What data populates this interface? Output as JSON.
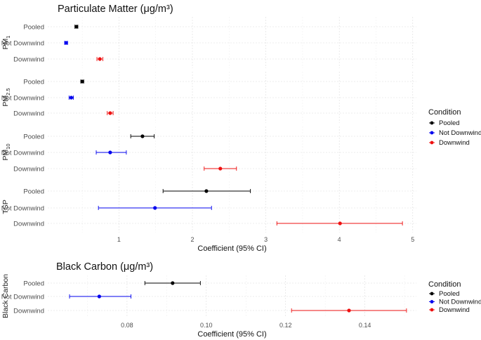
{
  "colors": {
    "Pooled": "#000000",
    "Not Downwind": "#0000ee",
    "Downwind": "#ee1111"
  },
  "chart_data": [
    {
      "type": "forest",
      "title": "Particulate Matter (μg/m³)",
      "xlabel": "Coefficient (95% CI)",
      "xlim": [
        0.03,
        5.05
      ],
      "xticks": [
        1,
        2,
        3,
        4,
        5
      ],
      "xtick_labels": [
        "1",
        "2",
        "3",
        "4",
        "5"
      ],
      "grid": true,
      "legend": {
        "title": "Condition",
        "position": "right",
        "items": [
          "Pooled",
          "Not Downwind",
          "Downwind"
        ]
      },
      "row_labels": [
        "Pooled",
        "Not Downwind",
        "Downwind"
      ],
      "panels": [
        {
          "name": "PM1",
          "label_main": "PM",
          "label_sub": "1",
          "rows": [
            {
              "condition": "Pooled",
              "estimate": 0.42,
              "lower": 0.4,
              "upper": 0.44
            },
            {
              "condition": "Not Downwind",
              "estimate": 0.28,
              "lower": 0.26,
              "upper": 0.3
            },
            {
              "condition": "Downwind",
              "estimate": 0.74,
              "lower": 0.7,
              "upper": 0.78
            }
          ]
        },
        {
          "name": "PM2.5",
          "label_main": "PM",
          "label_sub": "2.5",
          "rows": [
            {
              "condition": "Pooled",
              "estimate": 0.5,
              "lower": 0.48,
              "upper": 0.52
            },
            {
              "condition": "Not Downwind",
              "estimate": 0.35,
              "lower": 0.32,
              "upper": 0.38
            },
            {
              "condition": "Downwind",
              "estimate": 0.88,
              "lower": 0.84,
              "upper": 0.92
            }
          ]
        },
        {
          "name": "PM10",
          "label_main": "PM",
          "label_sub": "10",
          "rows": [
            {
              "condition": "Pooled",
              "estimate": 1.32,
              "lower": 1.16,
              "upper": 1.48
            },
            {
              "condition": "Not Downwind",
              "estimate": 0.88,
              "lower": 0.69,
              "upper": 1.1
            },
            {
              "condition": "Downwind",
              "estimate": 2.38,
              "lower": 2.16,
              "upper": 2.6
            }
          ]
        },
        {
          "name": "TSP",
          "label_main": "TSP",
          "label_sub": "",
          "rows": [
            {
              "condition": "Pooled",
              "estimate": 2.19,
              "lower": 1.6,
              "upper": 2.79
            },
            {
              "condition": "Not Downwind",
              "estimate": 1.49,
              "lower": 0.72,
              "upper": 2.26
            },
            {
              "condition": "Downwind",
              "estimate": 4.01,
              "lower": 3.15,
              "upper": 4.86
            }
          ]
        }
      ]
    },
    {
      "type": "forest",
      "title": "Black Carbon (μg/m³)",
      "xlabel": "Coefficient (95% CI)",
      "xlim": [
        0.06,
        0.153
      ],
      "xticks": [
        0.08,
        0.1,
        0.12,
        0.14
      ],
      "xtick_labels": [
        "0.08",
        "0.10",
        "0.12",
        "0.14"
      ],
      "grid": true,
      "legend": {
        "title": "Condition",
        "position": "right",
        "items": [
          "Pooled",
          "Not Downwind",
          "Downwind"
        ]
      },
      "row_labels": [
        "Pooled",
        "Not Downwind",
        "Downwind"
      ],
      "panels": [
        {
          "name": "Black Carbon",
          "label_main": "Black Carbon",
          "label_sub": "",
          "rows": [
            {
              "condition": "Pooled",
              "estimate": 0.0915,
              "lower": 0.0845,
              "upper": 0.0985
            },
            {
              "condition": "Not Downwind",
              "estimate": 0.073,
              "lower": 0.0655,
              "upper": 0.081
            },
            {
              "condition": "Downwind",
              "estimate": 0.136,
              "lower": 0.1215,
              "upper": 0.1505
            }
          ]
        }
      ]
    }
  ]
}
